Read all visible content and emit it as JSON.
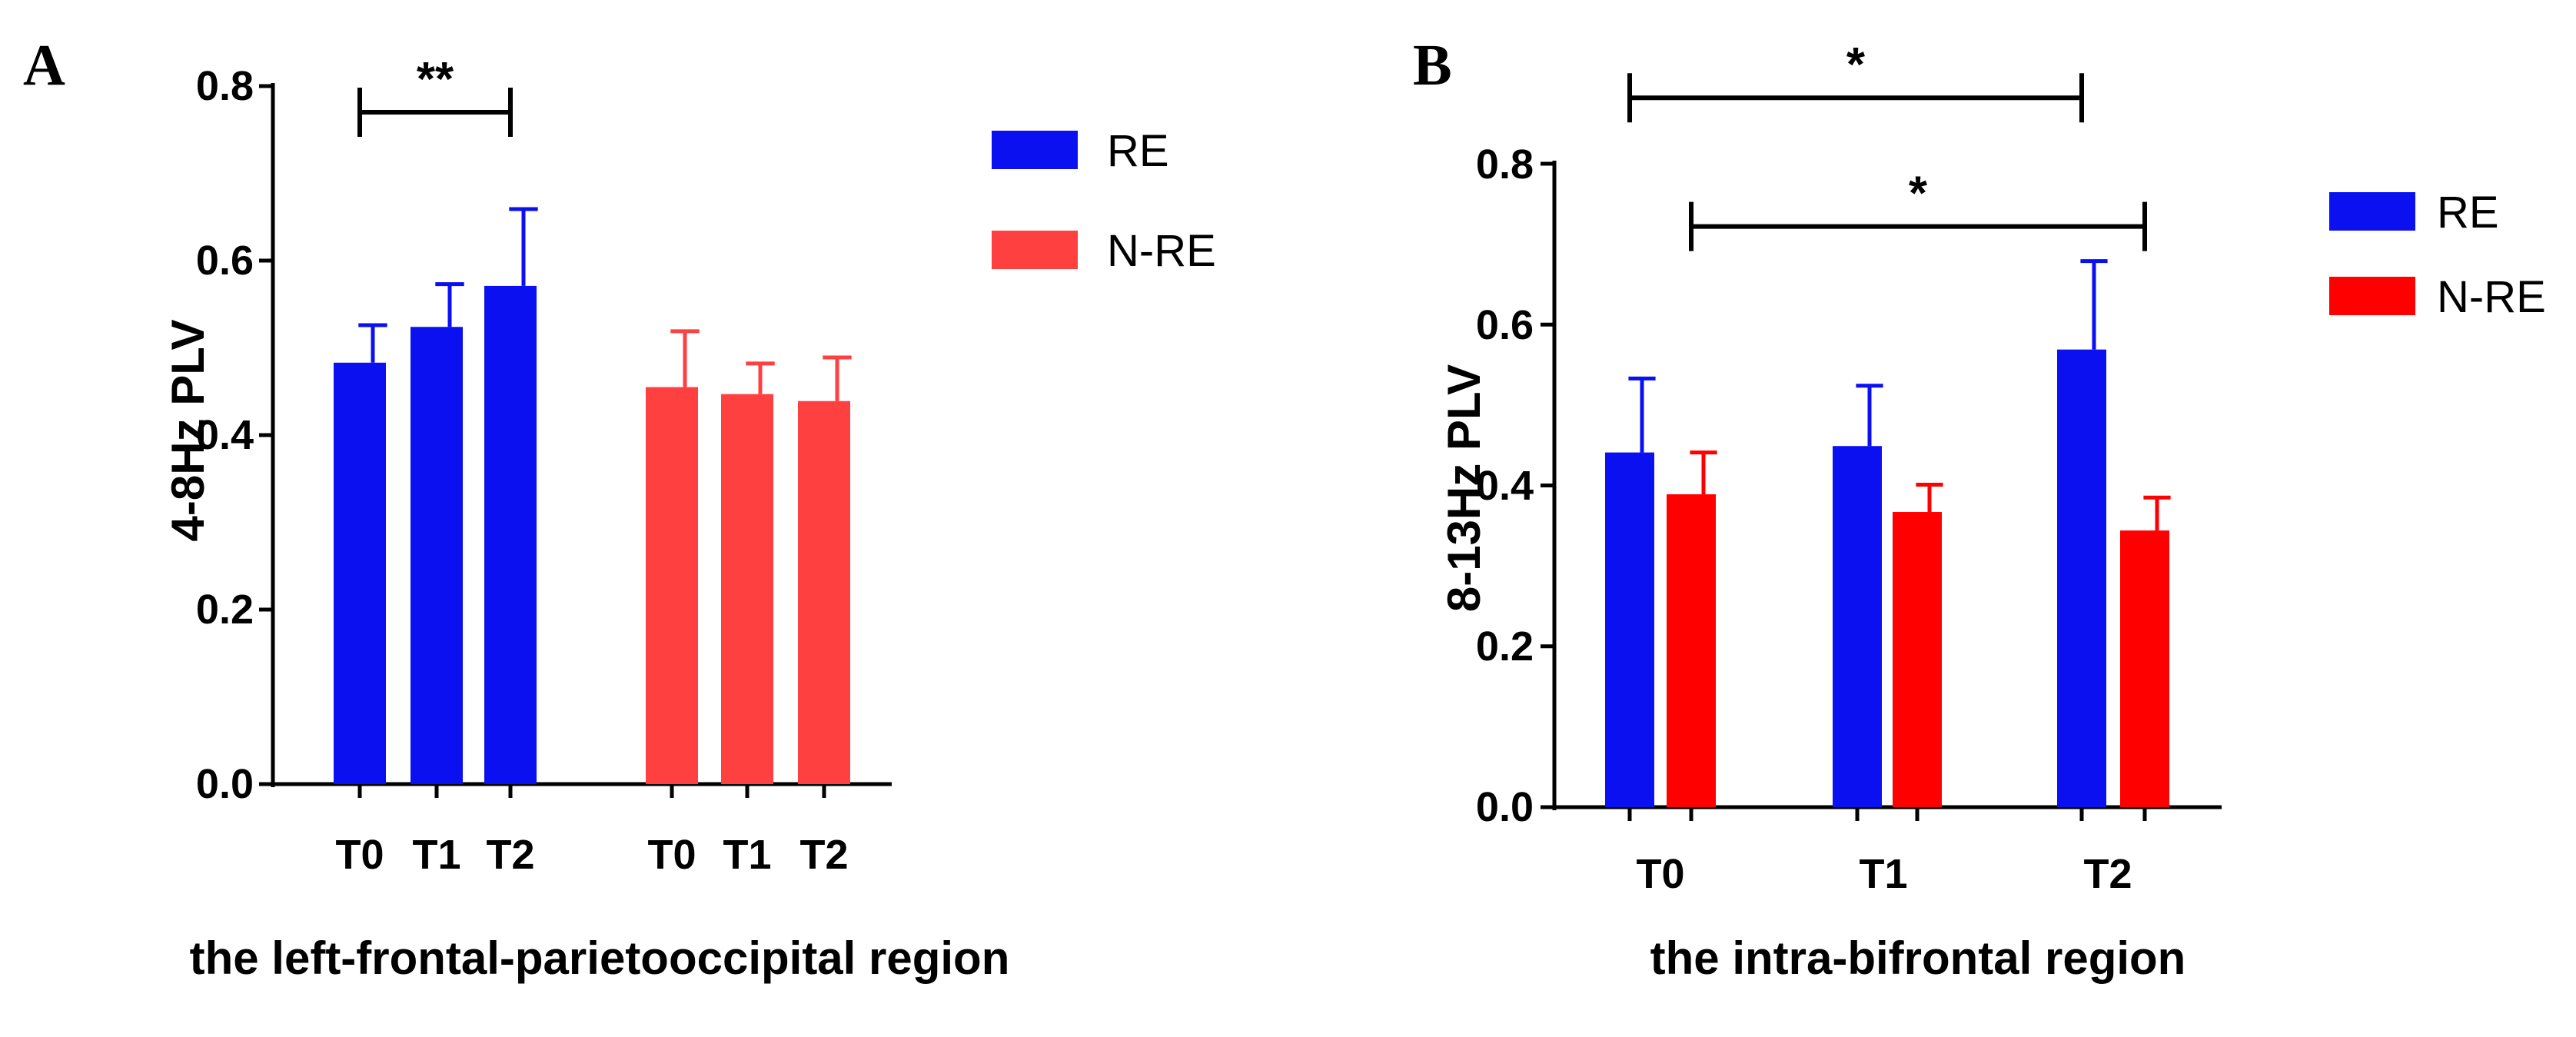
{
  "chart_data": [
    {
      "panel": "A",
      "type": "bar",
      "layout": "grouped-by-series",
      "ylabel": "4-8Hz PLV",
      "xlabel": "the left-frontal-parietooccipital region",
      "ylim": [
        0,
        0.8
      ],
      "yticks": [
        "0.0",
        "0.2",
        "0.4",
        "0.6",
        "0.8"
      ],
      "categories": [
        "T0",
        "T1",
        "T2"
      ],
      "series": [
        {
          "name": "RE",
          "color": "#0a10f0",
          "values": [
            0.483,
            0.524,
            0.571
          ],
          "errors": [
            0.043,
            0.049,
            0.088
          ]
        },
        {
          "name": "N-RE",
          "color": "#ff4040",
          "values": [
            0.455,
            0.447,
            0.439
          ],
          "errors": [
            0.064,
            0.035,
            0.05
          ]
        }
      ],
      "significance": [
        {
          "label": "**",
          "series": 0,
          "from": 0,
          "to": 2,
          "y": 0.77
        }
      ],
      "legend": [
        "RE",
        "N-RE"
      ]
    },
    {
      "panel": "B",
      "type": "bar",
      "layout": "grouped-by-category",
      "ylabel": "8-13Hz PLV",
      "xlabel": "the intra-bifrontal region",
      "ylim": [
        0,
        0.8
      ],
      "yticks": [
        "0.0",
        "0.2",
        "0.4",
        "0.6",
        "0.8"
      ],
      "categories": [
        "T0",
        "T1",
        "T2"
      ],
      "series": [
        {
          "name": "RE",
          "color": "#0a10f0",
          "values": [
            0.441,
            0.449,
            0.569
          ],
          "errors": [
            0.092,
            0.075,
            0.11
          ]
        },
        {
          "name": "N-RE",
          "color": "#ff0000",
          "values": [
            0.389,
            0.367,
            0.344
          ],
          "errors": [
            0.052,
            0.034,
            0.041
          ]
        }
      ],
      "significance": [
        {
          "label": "*",
          "from": [
            0,
            0
          ],
          "to": [
            2,
            0
          ],
          "y": 0.882
        },
        {
          "label": "*",
          "from": [
            0,
            1
          ],
          "to": [
            2,
            1
          ],
          "y": 0.722
        }
      ],
      "legend": [
        "RE",
        "N-RE"
      ]
    }
  ]
}
